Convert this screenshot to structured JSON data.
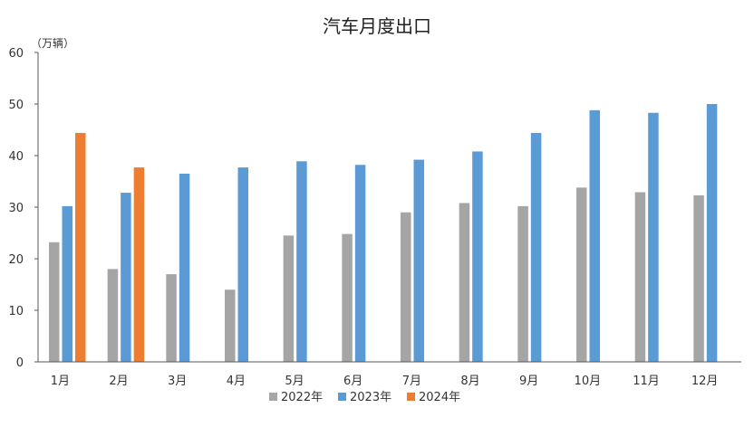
{
  "chart_data": {
    "type": "bar",
    "title": "汽车月度出口",
    "unit_label": "（万辆）",
    "categories": [
      "1月",
      "2月",
      "3月",
      "4月",
      "5月",
      "6月",
      "7月",
      "8月",
      "9月",
      "10月",
      "11月",
      "12月"
    ],
    "ylim": [
      0,
      60
    ],
    "yticks": [
      0,
      10,
      20,
      30,
      40,
      50,
      60
    ],
    "grid": false,
    "legend_position": "bottom",
    "series": [
      {
        "name": "2022年",
        "color": "#A5A5A5",
        "values": [
          23.2,
          18.0,
          17.0,
          14.0,
          24.5,
          24.8,
          29.0,
          30.8,
          30.2,
          33.8,
          32.9,
          32.3
        ]
      },
      {
        "name": "2023年",
        "color": "#5B9BD5",
        "values": [
          30.2,
          32.8,
          36.5,
          37.7,
          38.9,
          38.2,
          39.2,
          40.8,
          44.4,
          48.8,
          48.3,
          50.0
        ]
      },
      {
        "name": "2024年",
        "color": "#ED7D31",
        "values": [
          44.4,
          37.7,
          null,
          null,
          null,
          null,
          null,
          null,
          null,
          null,
          null,
          null
        ]
      }
    ]
  }
}
